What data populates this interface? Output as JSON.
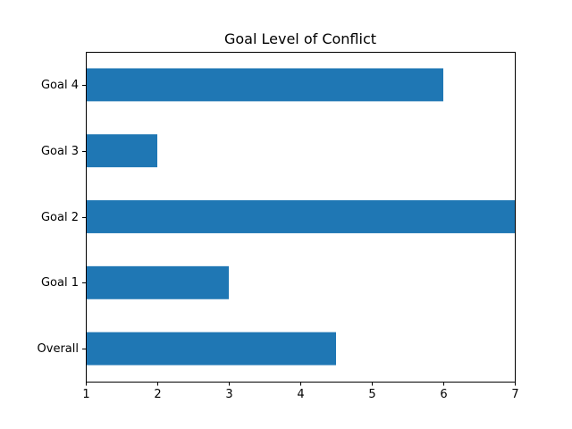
{
  "chart_data": {
    "type": "bar",
    "orientation": "horizontal",
    "title": "Goal Level of Conflict",
    "xlabel": "",
    "ylabel": "",
    "categories": [
      "Overall",
      "Goal 1",
      "Goal 2",
      "Goal 3",
      "Goal 4"
    ],
    "values": [
      4.5,
      3,
      7,
      2,
      6
    ],
    "xlim": [
      1,
      7
    ],
    "xticks": [
      1,
      2,
      3,
      4,
      5,
      6,
      7
    ],
    "grid": false,
    "legend": "none",
    "bar_color": "#1f77b4"
  }
}
